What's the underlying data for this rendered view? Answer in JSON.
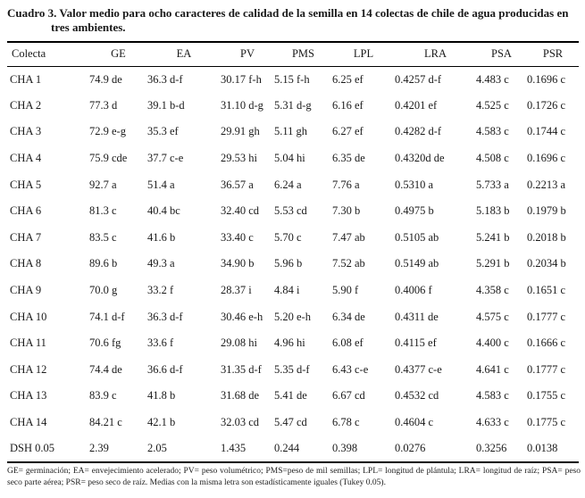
{
  "page": {
    "background": "#ffffff",
    "text_color": "#1a1a1a"
  },
  "table": {
    "title": {
      "line1": "Cuadro 3. Valor medio para ocho caracteres de calidad de la semilla en 14 colectas de chile de agua producidas en",
      "line2": "tres ambientes."
    },
    "columns": [
      "Colecta",
      "GE",
      "EA",
      "PV",
      "PMS",
      "LPL",
      "LRA",
      "PSA",
      "PSR"
    ],
    "rows": [
      [
        "CHA 1",
        "74.9 de",
        "36.3 d-f",
        "30.17 f-h",
        "5.15 f-h",
        "6.25 ef",
        "0.4257 d-f",
        "4.483 c",
        "0.1696 c"
      ],
      [
        "CHA 2",
        "77.3 d",
        "39.1 b-d",
        "31.10 d-g",
        "5.31 d-g",
        "6.16 ef",
        "0.4201 ef",
        "4.525 c",
        "0.1726 c"
      ],
      [
        "CHA 3",
        "72.9 e-g",
        "35.3 ef",
        "29.91 gh",
        "5.11 gh",
        "6.27 ef",
        "0.4282 d-f",
        "4.583 c",
        "0.1744 c"
      ],
      [
        "CHA 4",
        "75.9 cde",
        "37.7 c-e",
        "29.53 hi",
        "5.04 hi",
        "6.35 de",
        "0.4320d de",
        "4.508 c",
        "0.1696 c"
      ],
      [
        "CHA 5",
        "92.7 a",
        "51.4 a",
        "36.57 a",
        "6.24 a",
        "7.76 a",
        "0.5310 a",
        "5.733 a",
        "0.2213 a"
      ],
      [
        "CHA 6",
        "81.3 c",
        "40.4 bc",
        "32.40 cd",
        "5.53 cd",
        "7.30 b",
        "0.4975 b",
        "5.183 b",
        "0.1979 b"
      ],
      [
        "CHA 7",
        "83.5 c",
        "41.6 b",
        "33.40 c",
        "5.70 c",
        "7.47 ab",
        "0.5105 ab",
        "5.241 b",
        "0.2018 b"
      ],
      [
        "CHA 8",
        "89.6 b",
        "49.3 a",
        "34.90 b",
        "5.96 b",
        "7.52 ab",
        "0.5149 ab",
        "5.291 b",
        "0.2034 b"
      ],
      [
        "CHA 9",
        "70.0 g",
        "33.2 f",
        "28.37 i",
        "4.84 i",
        "5.90 f",
        "0.4006 f",
        "4.358 c",
        "0.1651 c"
      ],
      [
        "CHA 10",
        "74.1 d-f",
        "36.3 d-f",
        "30.46 e-h",
        "5.20 e-h",
        "6.34 de",
        "0.4311 de",
        "4.575 c",
        "0.1777 c"
      ],
      [
        "CHA 11",
        "70.6 fg",
        "33.6 f",
        "29.08 hi",
        "4.96 hi",
        "6.08 ef",
        "0.4115 ef",
        "4.400 c",
        "0.1666 c"
      ],
      [
        "CHA 12",
        "74.4 de",
        "36.6 d-f",
        "31.35 d-f",
        "5.35 d-f",
        "6.43 c-e",
        "0.4377 c-e",
        "4.641 c",
        "0.1777 c"
      ],
      [
        "CHA 13",
        "83.9 c",
        "41.8 b",
        "31.68 de",
        "5.41 de",
        "6.67 cd",
        "0.4532 cd",
        "4.583 c",
        "0.1755 c"
      ],
      [
        "CHA 14",
        "84.21 c",
        "42.1 b",
        "32.03 cd",
        "5.47 cd",
        "6.78 c",
        "0.4604 c",
        "4.633 c",
        "0.1775 c"
      ],
      [
        "DSH 0.05",
        "2.39",
        "2.05",
        "1.435",
        "0.244",
        "0.398",
        "0.0276",
        "0.3256",
        "0.0138"
      ]
    ],
    "footnote": "GE= germinación; EA= envejecimiento acelerado; PV= peso volumétrico; PMS=peso de mil semillas; LPL= longitud de plántula; LRA= longitud de raíz; PSA= peso seco parte aérea; PSR= peso seco de raíz. Medias con la misma letra son estadísticamente iguales (Tukey 0.05)."
  }
}
